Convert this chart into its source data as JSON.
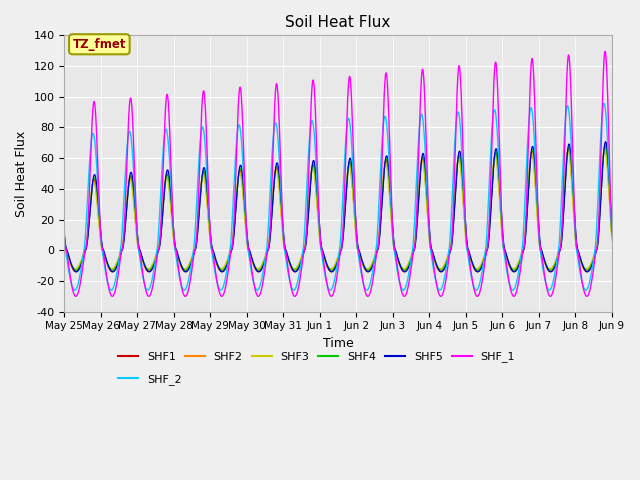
{
  "title": "Soil Heat Flux",
  "xlabel": "Time",
  "ylabel": "Soil Heat Flux",
  "ylim": [
    -40,
    140
  ],
  "n_days": 15,
  "xtick_labels": [
    "May 25",
    "May 26",
    "May 27",
    "May 28",
    "May 29",
    "May 30",
    "May 31",
    "Jun 1",
    "Jun 2",
    "Jun 3",
    "Jun 4",
    "Jun 5",
    "Jun 6",
    "Jun 7",
    "Jun 8",
    "Jun 9"
  ],
  "series_colors": {
    "SHF1": "#cc0000",
    "SHF2": "#ff8800",
    "SHF3": "#cccc00",
    "SHF4": "#00cc00",
    "SHF5": "#0000cc",
    "SHF_1": "#ff00ff",
    "SHF_2": "#00ccff"
  },
  "annotation_text": "TZ_fmet",
  "annotation_bg": "#ffff99",
  "annotation_border": "#999900",
  "fig_bg": "#f0f0f0",
  "ax_bg": "#e8e8e8",
  "grid_color": "#ffffff",
  "legend_ncol_row1": 6,
  "legend_ncol_row2": 1,
  "yticks": [
    -40,
    -20,
    0,
    20,
    40,
    60,
    80,
    100,
    120,
    140
  ]
}
